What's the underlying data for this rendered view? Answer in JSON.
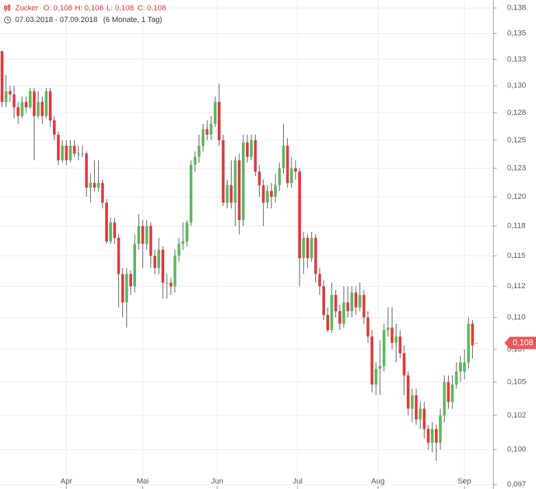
{
  "chart_data": {
    "type": "candlestick",
    "title": "Zucker",
    "ohlc_labels": [
      "O: 0,108",
      "H: 0,108",
      "L: 0,108",
      "C: 0,108"
    ],
    "subtitle": "07.03.2018 - 07.09.2018",
    "period": "(6 Monate, 1 Tag)",
    "up_color": "#5cb85c",
    "down_color": "#e0393e",
    "log_scale": true,
    "grid": true,
    "last_price": {
      "value": 0.108,
      "label": "0,108"
    },
    "ylim": [
      0.0972,
      0.1383
    ],
    "yticks": [
      {
        "value": 0.1375,
        "label": "0,138"
      },
      {
        "value": 0.135,
        "label": "0,135"
      },
      {
        "value": 0.1325,
        "label": "0,133"
      },
      {
        "value": 0.13,
        "label": "0,130"
      },
      {
        "value": 0.1275,
        "label": "0,128"
      },
      {
        "value": 0.125,
        "label": "0,125"
      },
      {
        "value": 0.1225,
        "label": "0,123"
      },
      {
        "value": 0.12,
        "label": "0,120"
      },
      {
        "value": 0.1175,
        "label": "0,118"
      },
      {
        "value": 0.115,
        "label": "0,115"
      },
      {
        "value": 0.1125,
        "label": "0,112"
      },
      {
        "value": 0.11,
        "label": "0,110"
      },
      {
        "value": 0.1075,
        "label": "0,107"
      },
      {
        "value": 0.105,
        "label": "0,105"
      },
      {
        "value": 0.1025,
        "label": "0,102"
      },
      {
        "value": 0.1,
        "label": "0,100"
      },
      {
        "value": 0.0975,
        "label": "0,097"
      }
    ],
    "xlim": [
      -0.5,
      122.2
    ],
    "xticks": [
      {
        "value": 16,
        "label": "Apr"
      },
      {
        "value": 35,
        "label": "Mai"
      },
      {
        "value": 53.5,
        "label": "Jun"
      },
      {
        "value": 73.5,
        "label": "Jul"
      },
      {
        "value": 93.5,
        "label": "Aug"
      },
      {
        "value": 115,
        "label": "Sep"
      }
    ],
    "candles": [
      [
        0.1333,
        0.1333,
        0.128,
        0.1285
      ],
      [
        0.1285,
        0.131,
        0.128,
        0.1295
      ],
      [
        0.1295,
        0.13,
        0.1285,
        0.1292
      ],
      [
        0.1292,
        0.13,
        0.127,
        0.128
      ],
      [
        0.128,
        0.1285,
        0.1265,
        0.1272
      ],
      [
        0.1272,
        0.129,
        0.127,
        0.1285
      ],
      [
        0.1285,
        0.129,
        0.1275,
        0.128
      ],
      [
        0.128,
        0.1298,
        0.1278,
        0.1295
      ],
      [
        0.1295,
        0.1298,
        0.1232,
        0.1272
      ],
      [
        0.1272,
        0.1295,
        0.127,
        0.1285
      ],
      [
        0.1285,
        0.129,
        0.1265,
        0.1272
      ],
      [
        0.1272,
        0.1298,
        0.127,
        0.1295
      ],
      [
        0.1295,
        0.1298,
        0.1262,
        0.1268
      ],
      [
        0.1268,
        0.1272,
        0.125,
        0.1255
      ],
      [
        0.1255,
        0.1258,
        0.1228,
        0.1232
      ],
      [
        0.1232,
        0.125,
        0.123,
        0.1245
      ],
      [
        0.1245,
        0.125,
        0.1228,
        0.1232
      ],
      [
        0.1232,
        0.125,
        0.123,
        0.1245
      ],
      [
        0.1245,
        0.125,
        0.1235,
        0.1238
      ],
      [
        0.1238,
        0.1245,
        0.1232,
        0.1238
      ],
      [
        0.1238,
        0.1245,
        0.1235,
        0.1238
      ],
      [
        0.1238,
        0.124,
        0.12,
        0.1208
      ],
      [
        0.1208,
        0.122,
        0.1195,
        0.1212
      ],
      [
        0.1212,
        0.1232,
        0.1205,
        0.1208
      ],
      [
        0.1208,
        0.1232,
        0.1205,
        0.1212
      ],
      [
        0.1212,
        0.1215,
        0.119,
        0.1195
      ],
      [
        0.1195,
        0.1198,
        0.116,
        0.1162
      ],
      [
        0.1162,
        0.1182,
        0.116,
        0.1178
      ],
      [
        0.1178,
        0.1182,
        0.116,
        0.1165
      ],
      [
        0.1165,
        0.1168,
        0.1108,
        0.1135
      ],
      [
        0.1135,
        0.114,
        0.11,
        0.1112
      ],
      [
        0.1112,
        0.114,
        0.1092,
        0.1135
      ],
      [
        0.1135,
        0.1138,
        0.1118,
        0.1125
      ],
      [
        0.1125,
        0.1168,
        0.112,
        0.116
      ],
      [
        0.116,
        0.1185,
        0.1155,
        0.1175
      ],
      [
        0.1175,
        0.118,
        0.114,
        0.116
      ],
      [
        0.116,
        0.118,
        0.1155,
        0.1175
      ],
      [
        0.1175,
        0.1178,
        0.114,
        0.115
      ],
      [
        0.115,
        0.1155,
        0.1135,
        0.114
      ],
      [
        0.114,
        0.1165,
        0.1135,
        0.1155
      ],
      [
        0.1155,
        0.1158,
        0.1115,
        0.1128
      ],
      [
        0.1128,
        0.1135,
        0.1115,
        0.1128
      ],
      [
        0.1128,
        0.1132,
        0.1118,
        0.1125
      ],
      [
        0.1125,
        0.1155,
        0.112,
        0.115
      ],
      [
        0.115,
        0.1165,
        0.1145,
        0.116
      ],
      [
        0.116,
        0.1178,
        0.1155,
        0.1162
      ],
      [
        0.1162,
        0.118,
        0.1158,
        0.1178
      ],
      [
        0.1178,
        0.1232,
        0.1175,
        0.1228
      ],
      [
        0.1228,
        0.124,
        0.1222,
        0.1235
      ],
      [
        0.1235,
        0.1255,
        0.123,
        0.1245
      ],
      [
        0.1245,
        0.1265,
        0.124,
        0.126
      ],
      [
        0.126,
        0.1268,
        0.125,
        0.1255
      ],
      [
        0.1255,
        0.1272,
        0.125,
        0.1265
      ],
      [
        0.1265,
        0.129,
        0.1262,
        0.1285
      ],
      [
        0.1285,
        0.1302,
        0.1245,
        0.125
      ],
      [
        0.125,
        0.1255,
        0.1192,
        0.1195
      ],
      [
        0.1195,
        0.1215,
        0.119,
        0.121
      ],
      [
        0.121,
        0.1232,
        0.119,
        0.1195
      ],
      [
        0.1195,
        0.1235,
        0.1175,
        0.1232
      ],
      [
        0.1232,
        0.1238,
        0.1168,
        0.118
      ],
      [
        0.118,
        0.1255,
        0.1175,
        0.1248
      ],
      [
        0.1248,
        0.1255,
        0.123,
        0.1235
      ],
      [
        0.1235,
        0.1255,
        0.1232,
        0.125
      ],
      [
        0.125,
        0.1255,
        0.1218,
        0.1222
      ],
      [
        0.1222,
        0.1228,
        0.12,
        0.121
      ],
      [
        0.121,
        0.1215,
        0.1175,
        0.1195
      ],
      [
        0.1195,
        0.121,
        0.119,
        0.1205
      ],
      [
        0.1205,
        0.1212,
        0.119,
        0.12
      ],
      [
        0.12,
        0.122,
        0.1195,
        0.121
      ],
      [
        0.121,
        0.123,
        0.1205,
        0.1225
      ],
      [
        0.1225,
        0.1265,
        0.122,
        0.1245
      ],
      [
        0.1245,
        0.1252,
        0.1208,
        0.1212
      ],
      [
        0.1212,
        0.1235,
        0.1208,
        0.1225
      ],
      [
        0.1225,
        0.1232,
        0.1215,
        0.1222
      ],
      [
        0.1222,
        0.1225,
        0.1125,
        0.1148
      ],
      [
        0.1148,
        0.117,
        0.1135,
        0.1165
      ],
      [
        0.1165,
        0.1168,
        0.114,
        0.1148
      ],
      [
        0.1148,
        0.117,
        0.1145,
        0.1165
      ],
      [
        0.1165,
        0.1168,
        0.1128,
        0.1135
      ],
      [
        0.1135,
        0.114,
        0.1118,
        0.1125
      ],
      [
        0.1125,
        0.113,
        0.1098,
        0.1102
      ],
      [
        0.1102,
        0.1108,
        0.1088,
        0.109
      ],
      [
        0.109,
        0.1128,
        0.1088,
        0.1118
      ],
      [
        0.1118,
        0.1122,
        0.11,
        0.1105
      ],
      [
        0.1105,
        0.111,
        0.109,
        0.1095
      ],
      [
        0.1095,
        0.1125,
        0.1092,
        0.1112
      ],
      [
        0.1112,
        0.1125,
        0.11,
        0.1105
      ],
      [
        0.1105,
        0.1125,
        0.11,
        0.112
      ],
      [
        0.112,
        0.1125,
        0.1102,
        0.1108
      ],
      [
        0.1108,
        0.1128,
        0.1105,
        0.1118
      ],
      [
        0.1118,
        0.1122,
        0.1095,
        0.11
      ],
      [
        0.11,
        0.1105,
        0.108,
        0.1085
      ],
      [
        0.1085,
        0.109,
        0.1042,
        0.1048
      ],
      [
        0.1048,
        0.1065,
        0.104,
        0.106
      ],
      [
        0.106,
        0.1082,
        0.104,
        0.1062
      ],
      [
        0.1062,
        0.1095,
        0.1058,
        0.109
      ],
      [
        0.109,
        0.1108,
        0.1085,
        0.1092
      ],
      [
        0.1092,
        0.1108,
        0.1075,
        0.108
      ],
      [
        0.108,
        0.1095,
        0.1065,
        0.1085
      ],
      [
        0.1085,
        0.109,
        0.1068,
        0.1072
      ],
      [
        0.1072,
        0.1078,
        0.104,
        0.1055
      ],
      [
        0.1055,
        0.1058,
        0.1025,
        0.103
      ],
      [
        0.103,
        0.1045,
        0.102,
        0.104
      ],
      [
        0.104,
        0.1045,
        0.1018,
        0.1022
      ],
      [
        0.1022,
        0.1035,
        0.1015,
        0.103
      ],
      [
        0.103,
        0.1035,
        0.1008,
        0.1015
      ],
      [
        0.1015,
        0.1018,
        0.1,
        0.1005
      ],
      [
        0.1005,
        0.102,
        0.0998,
        0.1015
      ],
      [
        0.1015,
        0.1018,
        0.0992,
        0.1005
      ],
      [
        0.1005,
        0.103,
        0.1,
        0.1025
      ],
      [
        0.1025,
        0.1055,
        0.102,
        0.105
      ],
      [
        0.105,
        0.1055,
        0.103,
        0.1035
      ],
      [
        0.1035,
        0.1055,
        0.103,
        0.1048
      ],
      [
        0.1048,
        0.1065,
        0.1045,
        0.1058
      ],
      [
        0.1058,
        0.107,
        0.105,
        0.1065
      ],
      [
        0.1058,
        0.1075,
        0.1052,
        0.1065
      ],
      [
        0.1065,
        0.11,
        0.106,
        0.1095
      ],
      [
        0.1095,
        0.1098,
        0.1068,
        0.1078
      ],
      [
        0.108,
        0.108,
        0.108,
        0.108
      ]
    ]
  }
}
